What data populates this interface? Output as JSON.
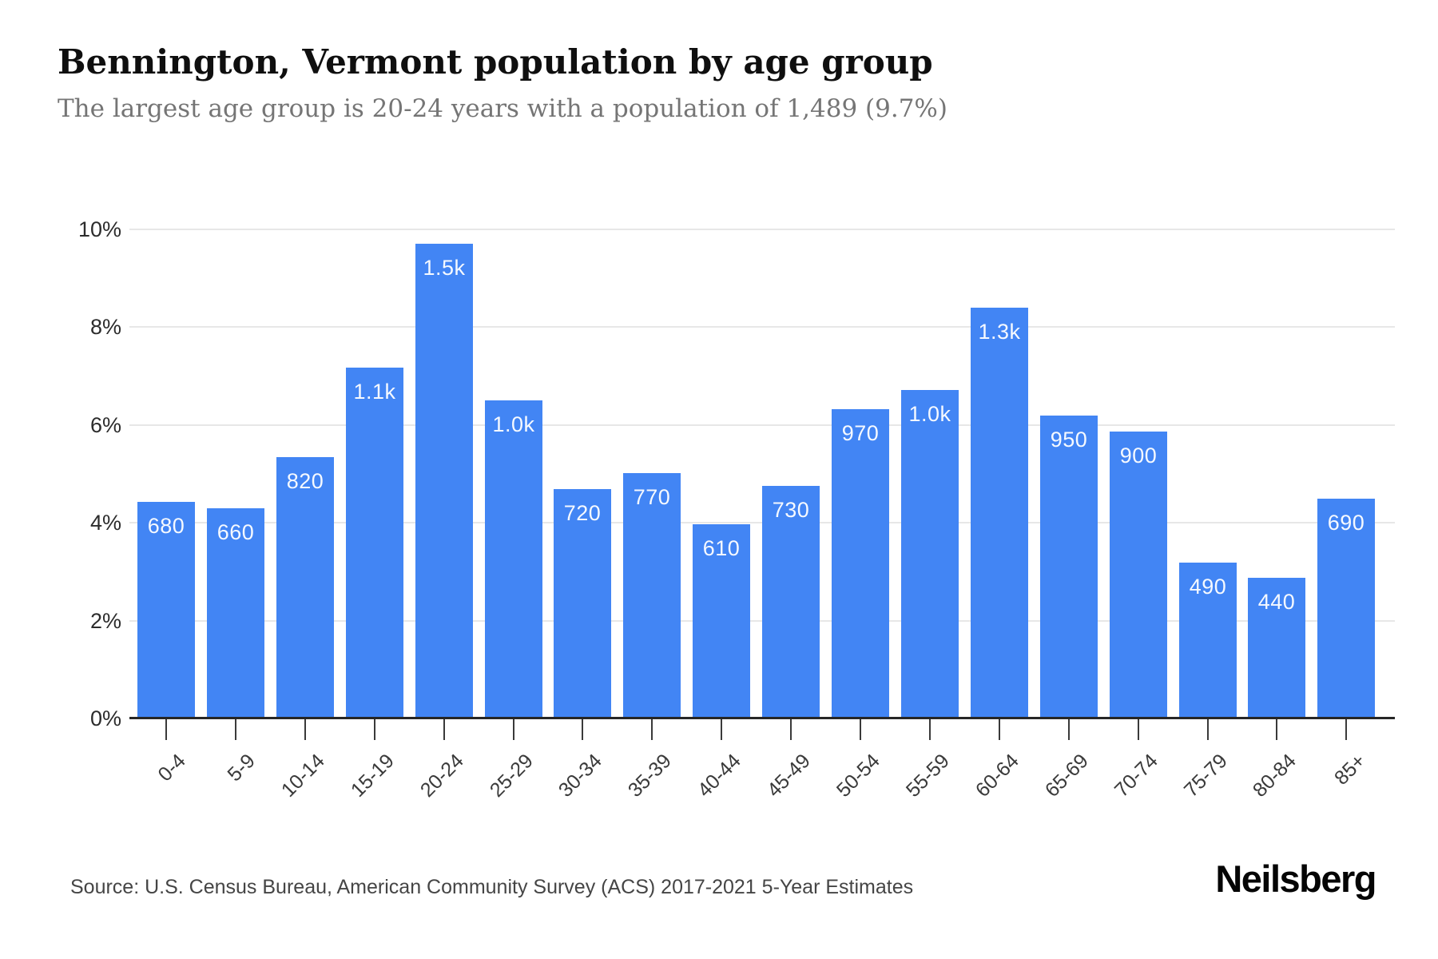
{
  "header": {
    "title": "Bennington, Vermont population by age group",
    "subtitle": "The largest age group is 20-24 years with a population of 1,489 (9.7%)"
  },
  "chart_data": {
    "type": "bar",
    "title": "Bennington, Vermont population by age group",
    "subtitle": "The largest age group is 20-24 years with a population of 1,489 (9.7%)",
    "categories": [
      "0-4",
      "5-9",
      "10-14",
      "15-19",
      "20-24",
      "25-29",
      "30-34",
      "35-39",
      "40-44",
      "45-49",
      "50-54",
      "55-59",
      "60-64",
      "65-69",
      "70-74",
      "75-79",
      "80-84",
      "85+"
    ],
    "series": [
      {
        "name": "Population share by age group",
        "values_percent": [
          4.43,
          4.3,
          5.34,
          7.17,
          9.7,
          6.51,
          4.69,
          5.02,
          3.97,
          4.76,
          6.32,
          6.71,
          8.4,
          6.19,
          5.86,
          3.19,
          2.87,
          4.49
        ],
        "bar_labels": [
          "680",
          "660",
          "820",
          "1.1k",
          "1.5k",
          "1.0k",
          "720",
          "770",
          "610",
          "730",
          "970",
          "1.0k",
          "1.3k",
          "950",
          "900",
          "490",
          "440",
          "690"
        ]
      }
    ],
    "xlabel": "",
    "ylabel": "",
    "ylim": [
      0,
      10
    ],
    "yticks": {
      "values": [
        0,
        2,
        4,
        6,
        8,
        10
      ],
      "labels": [
        "0%",
        "2%",
        "4%",
        "6%",
        "8%",
        "10%"
      ]
    },
    "grid": true,
    "legend": false,
    "bar_color": "#4285f4",
    "bar_label_color": "#ffffff",
    "highlighted_fact": "Largest age group: 20-24 years, population 1,489 (9.7%)"
  },
  "footer": {
    "source": "Source: U.S. Census Bureau, American Community Survey (ACS) 2017-2021 5-Year Estimates",
    "brand": "Neilsberg"
  }
}
